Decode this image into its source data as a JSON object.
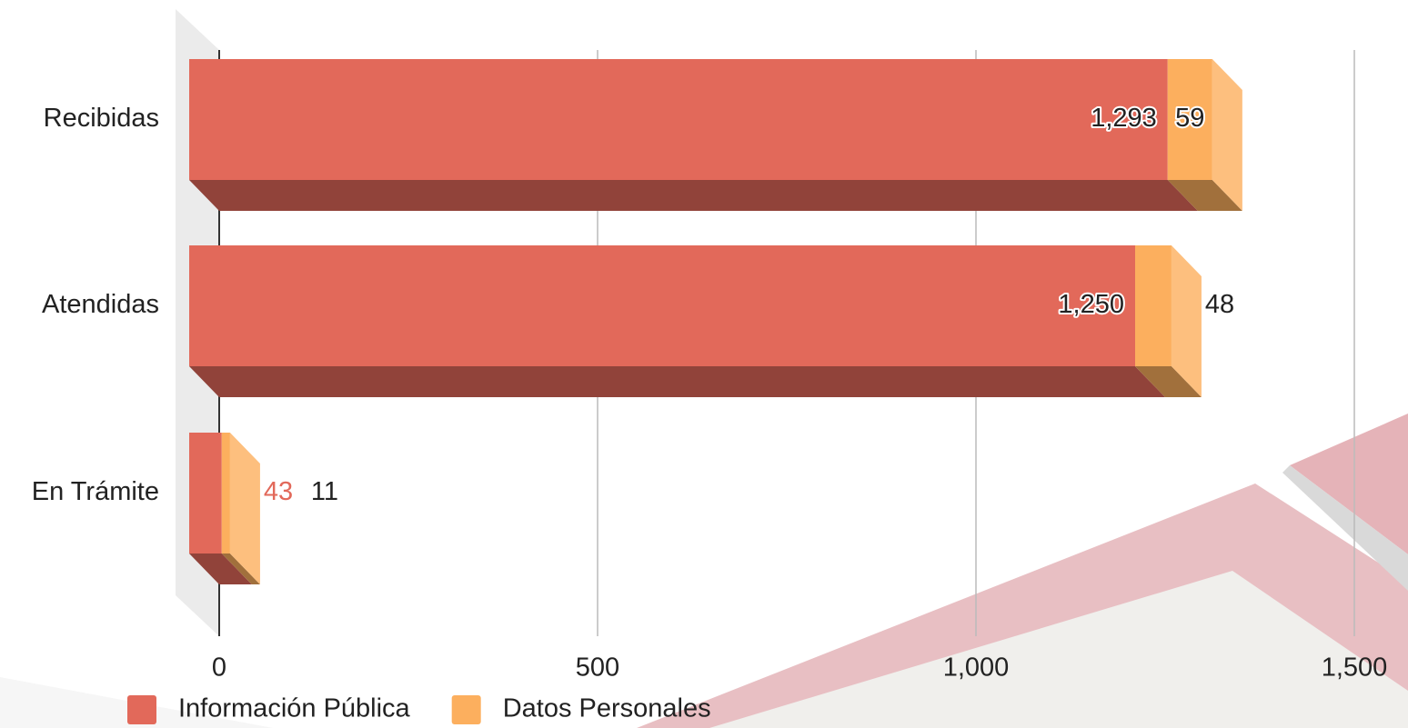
{
  "chart_data": {
    "type": "stacked-bar-3d",
    "categories": [
      "Recibidas",
      "Atendidas",
      "En Trámite"
    ],
    "series": [
      {
        "name": "Información Pública",
        "color": "#e2695a",
        "values": [
          1293,
          1250,
          43
        ],
        "value_labels": [
          "1,293",
          "1,250",
          "43"
        ]
      },
      {
        "name": "Datos Personales",
        "color": "#fcaf5e",
        "values": [
          59,
          48,
          11
        ],
        "value_labels": [
          "59",
          "48",
          "11"
        ]
      }
    ],
    "xlim": [
      0,
      1500
    ],
    "xticks": [
      0,
      500,
      {
        "value": 1000,
        "label": "1,000"
      },
      {
        "value": 1500,
        "label": "1,500"
      }
    ],
    "grid": true,
    "legend": "bottom"
  }
}
